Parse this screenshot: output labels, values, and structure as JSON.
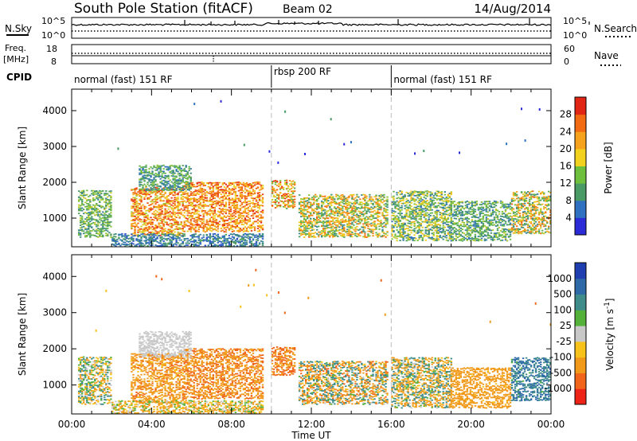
{
  "header": {
    "station": "South Pole Station (fitACF)",
    "beam": "Beam 02",
    "date": "14/Aug/2014"
  },
  "noise_panel": {
    "left_label": "N.Sky",
    "left_ticks": [
      "10^5",
      "10^0"
    ],
    "right_ticks": [
      "10^5",
      "10^0"
    ],
    "right_label": "N.Search"
  },
  "freq_panel": {
    "left_label_1": "Freq.",
    "left_label_2": "[MHz]",
    "left_ticks": [
      "18",
      "8"
    ],
    "right_ticks": [
      "60",
      "0"
    ],
    "right_label": "Nave"
  },
  "cpid": {
    "label": "CPID",
    "segments": [
      {
        "text": "normal (fast) 151 RF",
        "start_h": 0,
        "end_h": 10
      },
      {
        "text": "rbsp 200 RF",
        "start_h": 10,
        "end_h": 16
      },
      {
        "text": "normal (fast) 151 RF",
        "start_h": 16,
        "end_h": 24
      }
    ]
  },
  "colors": {
    "power_scale": [
      "#2b2bd8",
      "#2f70c0",
      "#4a9a66",
      "#6fbf3f",
      "#f2d21e",
      "#f7a21c",
      "#f26a12",
      "#e22616"
    ],
    "velocity_scale": [
      "#ee2418",
      "#f0651a",
      "#f19a1a",
      "#f7c21a",
      "#c8c8c8",
      "#54b13a",
      "#3f8c8a",
      "#2e6aa8",
      "#1f3fb0"
    ],
    "ground_scatter": "#c8c8c8"
  },
  "chart_data": [
    {
      "type": "heatmap",
      "title": "",
      "xlabel": "",
      "ylabel": "Slant Range [km]",
      "xlim": [
        0,
        24
      ],
      "ylim": [
        200,
        4600
      ],
      "x_ticks": [
        "00:00",
        "04:00",
        "08:00",
        "12:00",
        "16:00",
        "20:00",
        "00:00"
      ],
      "y_ticks": [
        "1000",
        "2000",
        "3000",
        "4000"
      ],
      "colorbar": {
        "label": "Power [dB]",
        "ticks": [
          "4",
          "8",
          "12",
          "16",
          "20",
          "24",
          "28"
        ],
        "range": [
          0,
          30
        ]
      },
      "regions": [
        {
          "t0": 0.3,
          "t1": 2.0,
          "r0": 500,
          "r1": 1800,
          "v0": 6,
          "v1": 16
        },
        {
          "t0": 3.0,
          "t1": 5.6,
          "r0": 550,
          "r1": 1900,
          "v0": 14,
          "v1": 30
        },
        {
          "t0": 5.6,
          "t1": 9.6,
          "r0": 650,
          "r1": 2050,
          "v0": 16,
          "v1": 30
        },
        {
          "t0": 3.4,
          "t1": 6.0,
          "r0": 1800,
          "r1": 2500,
          "v0": 4,
          "v1": 14
        },
        {
          "t0": 10.0,
          "t1": 11.2,
          "r0": 1300,
          "r1": 2100,
          "v0": 10,
          "v1": 30
        },
        {
          "t0": 11.4,
          "t1": 15.8,
          "r0": 500,
          "r1": 1700,
          "v0": 6,
          "v1": 26
        },
        {
          "t0": 16.0,
          "t1": 19.0,
          "r0": 400,
          "r1": 1800,
          "v0": 4,
          "v1": 20
        },
        {
          "t0": 19.0,
          "t1": 22.0,
          "r0": 400,
          "r1": 1500,
          "v0": 4,
          "v1": 16
        },
        {
          "t0": 22.0,
          "t1": 24.0,
          "r0": 600,
          "r1": 1800,
          "v0": 6,
          "v1": 26
        },
        {
          "t0": 2.0,
          "t1": 9.6,
          "r0": 250,
          "r1": 600,
          "v0": 2,
          "v1": 10
        }
      ]
    },
    {
      "type": "heatmap",
      "title": "",
      "xlabel": "Time UT",
      "ylabel": "Slant Range [km]",
      "xlim": [
        0,
        24
      ],
      "ylim": [
        200,
        4600
      ],
      "x_ticks": [
        "00:00",
        "04:00",
        "08:00",
        "12:00",
        "16:00",
        "20:00",
        "00:00"
      ],
      "y_ticks": [
        "1000",
        "2000",
        "3000",
        "4000"
      ],
      "colorbar": {
        "label": "Velocity [m s^-1]",
        "ticks": [
          "1000",
          "500",
          "100",
          "25",
          "-25",
          "-100",
          "-500",
          "-1000"
        ],
        "range": [
          -1200,
          1200
        ]
      },
      "regions": [
        {
          "t0": 0.3,
          "t1": 2.0,
          "r0": 500,
          "r1": 1800,
          "v0": -200,
          "v1": 200
        },
        {
          "t0": 3.0,
          "t1": 5.6,
          "r0": 550,
          "r1": 1900,
          "v0": -600,
          "v1": -50
        },
        {
          "t0": 5.6,
          "t1": 9.6,
          "r0": 650,
          "r1": 2050,
          "v0": -700,
          "v1": -100
        },
        {
          "t0": 3.4,
          "t1": 6.0,
          "r0": 1800,
          "r1": 2500,
          "v0": -20,
          "v1": 20
        },
        {
          "t0": 10.0,
          "t1": 11.2,
          "r0": 1300,
          "r1": 2100,
          "v0": -900,
          "v1": -200
        },
        {
          "t0": 11.4,
          "t1": 15.8,
          "r0": 500,
          "r1": 1700,
          "v0": -600,
          "v1": 400
        },
        {
          "t0": 16.0,
          "t1": 19.0,
          "r0": 400,
          "r1": 1800,
          "v0": -400,
          "v1": 300
        },
        {
          "t0": 19.0,
          "t1": 22.0,
          "r0": 400,
          "r1": 1500,
          "v0": -500,
          "v1": -80
        },
        {
          "t0": 22.0,
          "t1": 24.0,
          "r0": 600,
          "r1": 1800,
          "v0": 80,
          "v1": 900
        },
        {
          "t0": 2.0,
          "t1": 9.6,
          "r0": 250,
          "r1": 600,
          "v0": -300,
          "v1": 100
        }
      ]
    }
  ]
}
